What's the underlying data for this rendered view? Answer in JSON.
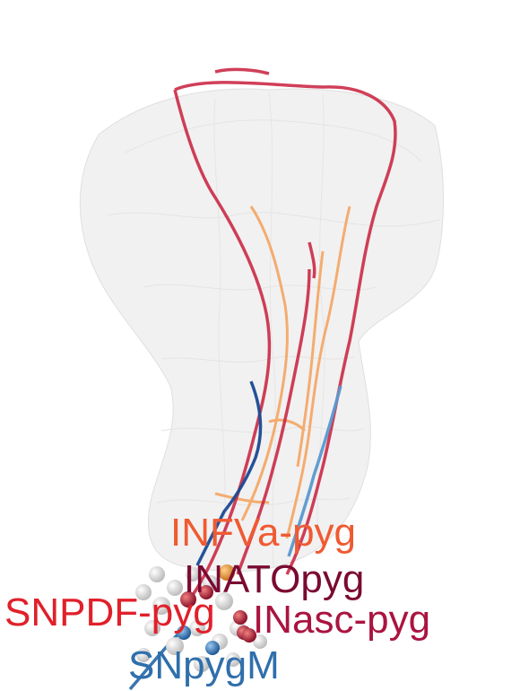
{
  "labels": [
    {
      "id": "infva",
      "text": "INFVa-pyg",
      "color": "#f05a32"
    },
    {
      "id": "inato",
      "text": "INATOpyg",
      "color": "#7a0a32"
    },
    {
      "id": "snpdf",
      "text": "SNPDF-pyg",
      "color": "#e0202a"
    },
    {
      "id": "inasc",
      "text": "INasc-pyg",
      "color": "#aa1440"
    },
    {
      "id": "snpygm",
      "text": "SNpygM",
      "color": "#2f6fab"
    }
  ],
  "colors": {
    "mesh_fill": "#d9d9d9",
    "mesh_stroke": "#c4c4c4",
    "neuron_red": "#c81e3c",
    "neuron_orange": "#f5a05a",
    "neuron_darkblue": "#1a4a94",
    "neuron_lightblue": "#5a9ad0",
    "soma_gray": "#cfcfcf"
  }
}
